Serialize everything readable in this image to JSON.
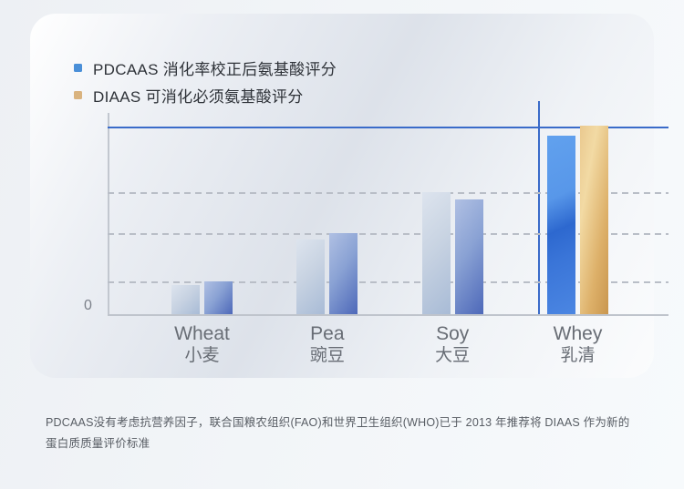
{
  "legend": {
    "items": [
      {
        "label": "PDCAAS 消化率校正后氨基酸评分",
        "color": "#4a8fd8",
        "series_key": "pdcaas"
      },
      {
        "label": "DIAAS 可消化必须氨基酸评分",
        "color": "#d9b37f",
        "series_key": "diaas"
      }
    ]
  },
  "chart_data": {
    "type": "bar",
    "title": "",
    "categories": [
      {
        "en": "Wheat",
        "zh": "小麦"
      },
      {
        "en": "Pea",
        "zh": "豌豆"
      },
      {
        "en": "Soy",
        "zh": "大豆"
      },
      {
        "en": "Whey",
        "zh": "乳清"
      }
    ],
    "series": [
      {
        "name": "PDCAAS 消化率校正后氨基酸评分",
        "key": "pdcaas",
        "values": [
          0.155,
          0.4,
          0.65,
          0.95
        ]
      },
      {
        "name": "DIAAS 可消化必须氨基酸评分",
        "key": "diaas",
        "values": [
          0.175,
          0.43,
          0.61,
          1.005
        ]
      }
    ],
    "ylim": [
      0,
      1.14
    ],
    "y_axis": {
      "zero_label": "0"
    },
    "reference_line_y": 1.0,
    "dashed_gridlines_y": [
      0.175,
      0.43,
      0.65
    ],
    "highlight_category": "Whey",
    "highlight_vline": true,
    "legend_position": "top-left",
    "grid": "dashed"
  },
  "colors": {
    "reference_line": "#3a6bc9",
    "axis": "#bfc4cc",
    "bar_pdcaas": "#a8bbd6",
    "bar_diaas": "#4d68b9",
    "bar_pdcaas_highlight": "#3a75d8",
    "bar_diaas_highlight": "#ddb069",
    "card_background": "#e3e8ef"
  },
  "footnote": {
    "text": "PDCAAS没有考虑抗营养因子，联合国粮农组织(FAO)和世界卫生组织(WHO)已于 2013 年推荐将 DIAAS 作为新的蛋白质质量评价标准"
  }
}
